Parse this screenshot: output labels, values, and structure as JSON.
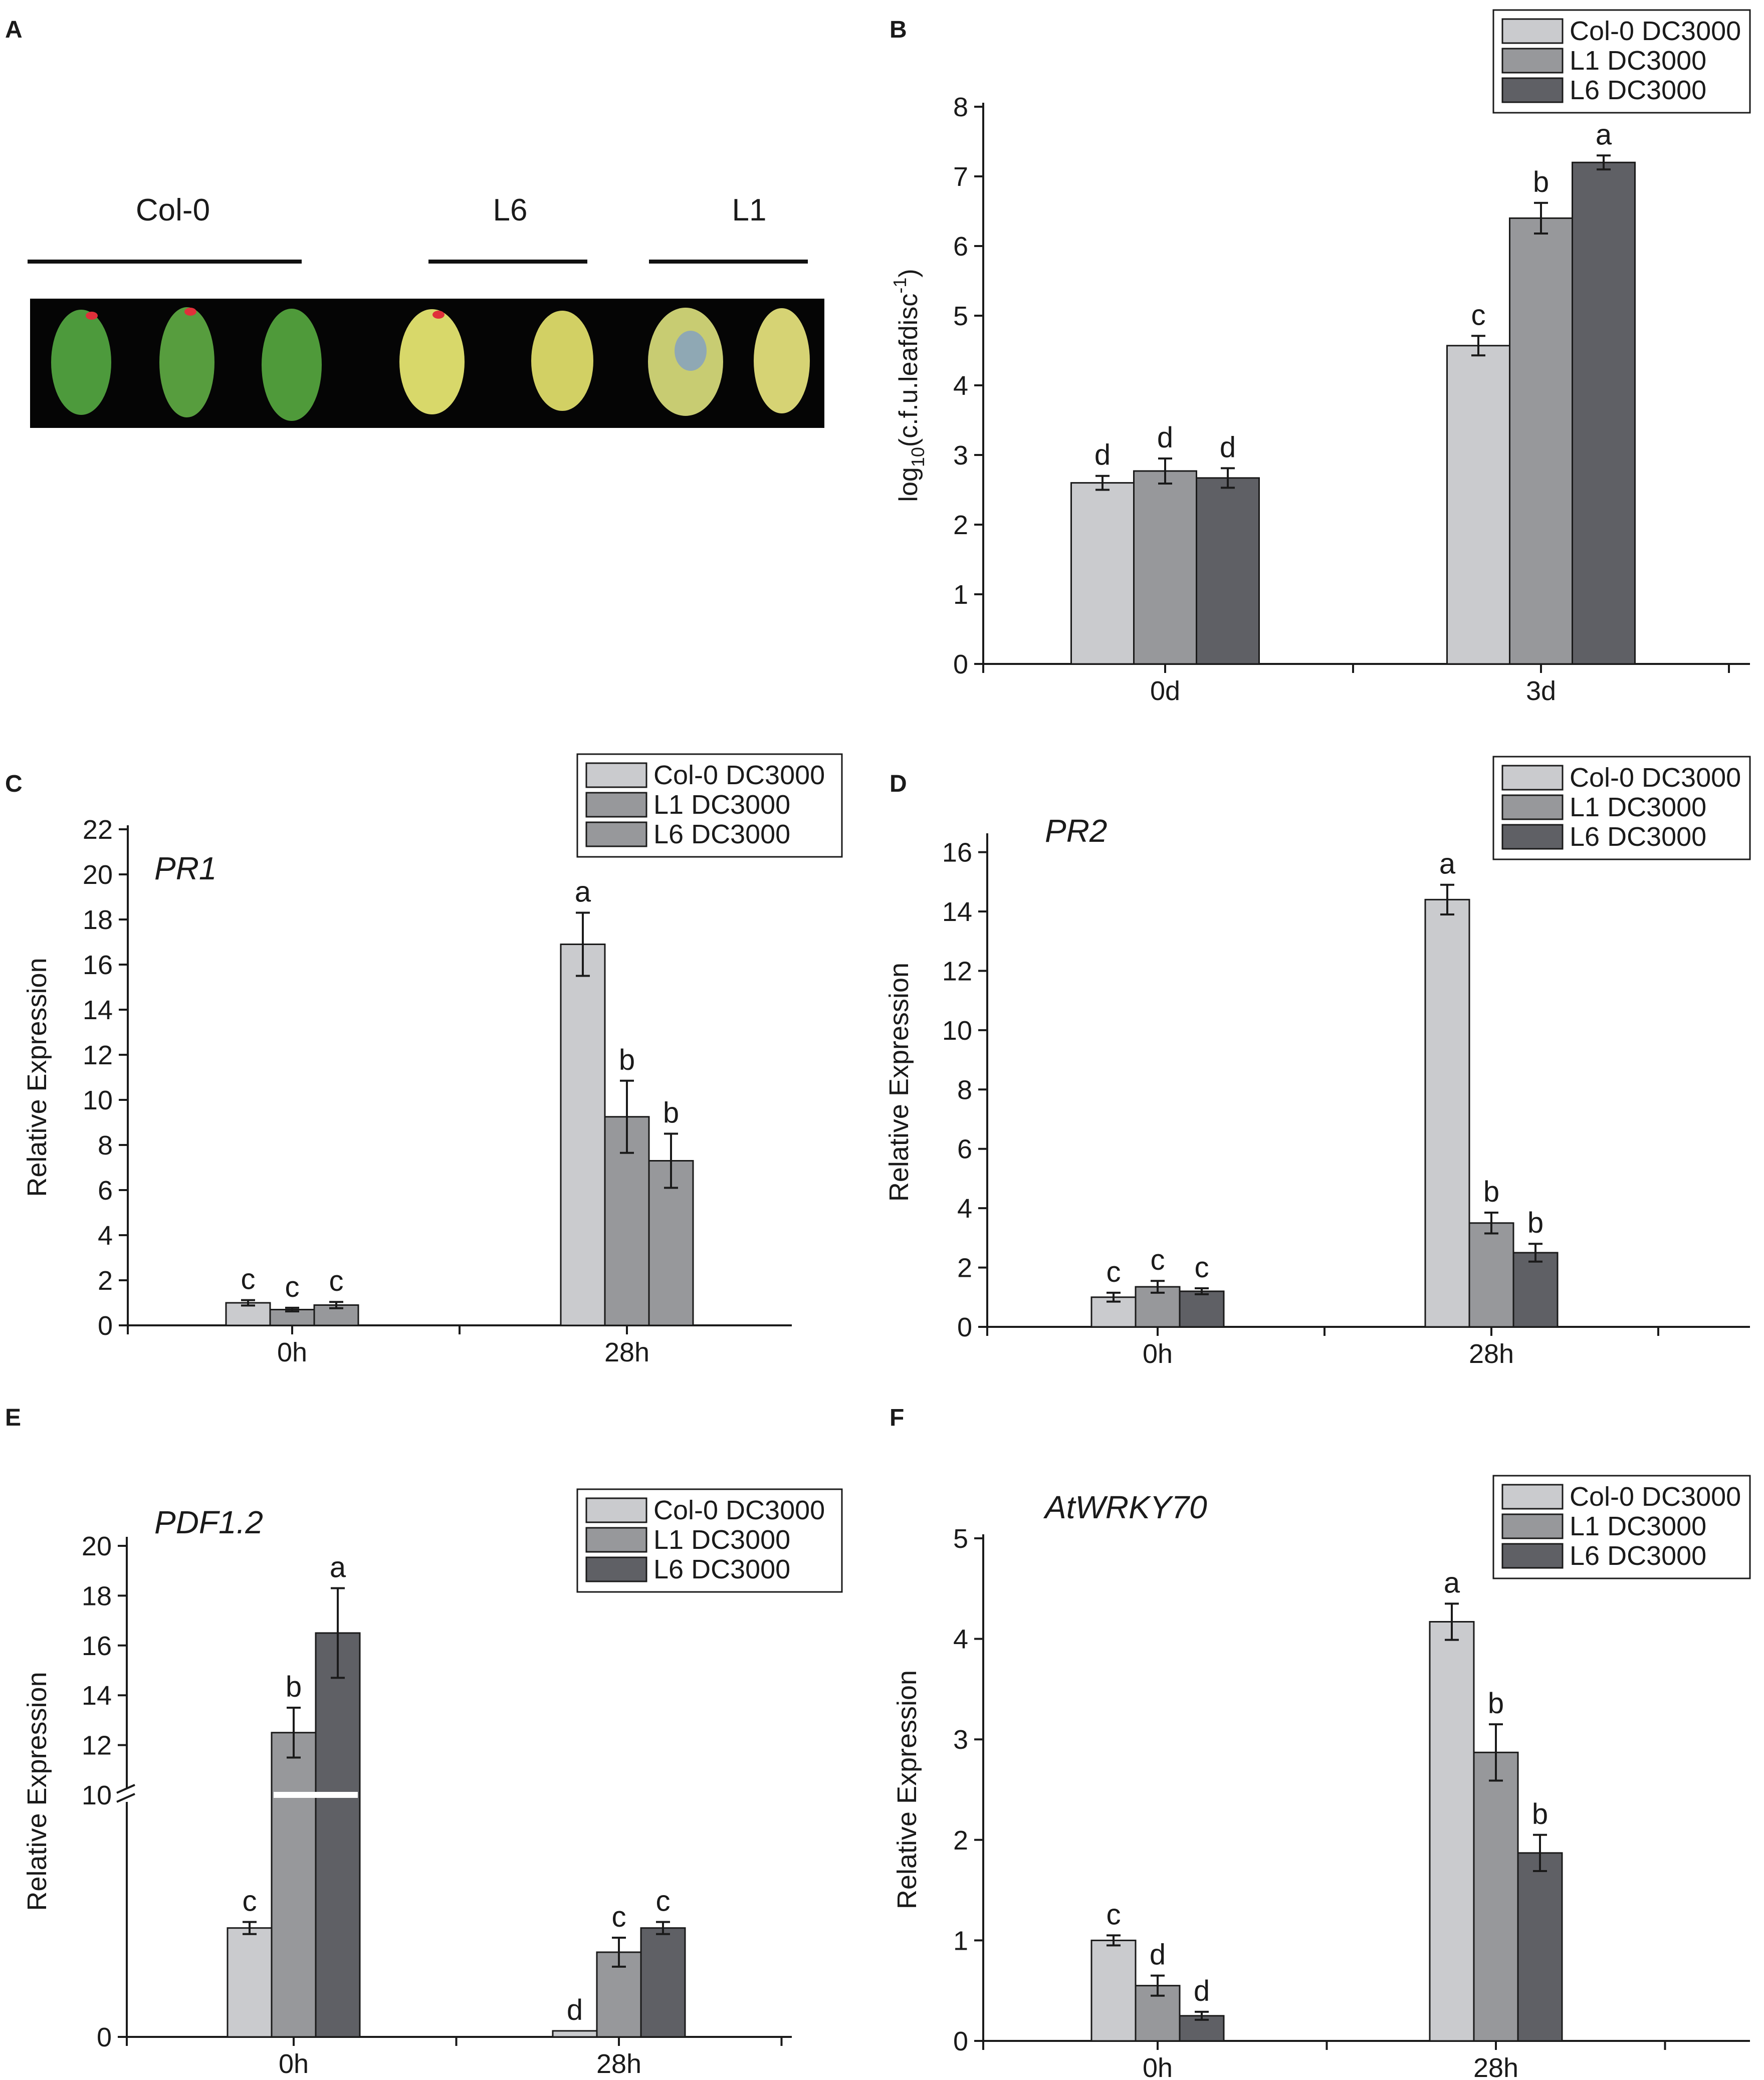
{
  "colors": {
    "col0": "#cacbce",
    "l1": "#97989b",
    "l6": "#5f6065",
    "l6_panel_c": "#97989b",
    "axis": "#1a1a1a"
  },
  "panel_a": {
    "letter": "A",
    "groups": [
      "Col-0",
      "L6",
      "L1"
    ]
  },
  "chart_data": [
    {
      "panel": "B",
      "type": "bar",
      "title": "",
      "ylabel": "log10(c.f.u.leafdisc-1)",
      "ylabel_parts": {
        "base": "log",
        "sub": "10",
        "main": "(c.f.u.leafdisc",
        "sup": "-1",
        "close": ")"
      },
      "categories": [
        "0d",
        "3d"
      ],
      "ylim": [
        0,
        8
      ],
      "yticks": [
        "0",
        "1",
        "2",
        "3",
        "4",
        "5",
        "6",
        "7",
        "8"
      ],
      "legend": [
        "Col-0 DC3000",
        "L1 DC3000",
        "L6 DC3000"
      ],
      "legend_position": "top-right",
      "series": [
        {
          "name": "Col-0 DC3000",
          "values": [
            2.6,
            4.57
          ],
          "errors": [
            0.1,
            0.14
          ],
          "letters": [
            "d",
            "c"
          ]
        },
        {
          "name": "L1 DC3000",
          "values": [
            2.77,
            6.4
          ],
          "errors": [
            0.18,
            0.22
          ],
          "letters": [
            "d",
            "b"
          ]
        },
        {
          "name": "L6 DC3000",
          "values": [
            2.67,
            7.2
          ],
          "errors": [
            0.14,
            0.1
          ],
          "letters": [
            "d",
            "a"
          ]
        }
      ]
    },
    {
      "panel": "C",
      "type": "bar",
      "title": "PR1",
      "ylabel": "Relative Expression",
      "categories": [
        "0h",
        "28h"
      ],
      "ylim": [
        0,
        22
      ],
      "yticks": [
        "0",
        "2",
        "4",
        "6",
        "8",
        "10",
        "12",
        "14",
        "16",
        "18",
        "20",
        "22"
      ],
      "legend": [
        "Col-0 DC3000",
        "L1 DC3000",
        "L6 DC3000"
      ],
      "legend_position": "top-right",
      "series": [
        {
          "name": "Col-0 DC3000",
          "values": [
            1.0,
            16.9
          ],
          "errors": [
            0.12,
            1.4
          ],
          "letters": [
            "c",
            "a"
          ]
        },
        {
          "name": "L1 DC3000",
          "values": [
            0.7,
            9.25
          ],
          "errors": [
            0.08,
            1.6
          ],
          "letters": [
            "c",
            "b"
          ]
        },
        {
          "name": "L6 DC3000",
          "values": [
            0.9,
            7.3
          ],
          "errors": [
            0.14,
            1.2
          ],
          "letters": [
            "c",
            "b"
          ]
        }
      ]
    },
    {
      "panel": "D",
      "type": "bar",
      "title": "PR2",
      "ylabel": "Relative Expression",
      "categories": [
        "0h",
        "28h"
      ],
      "ylim": [
        0,
        16.5
      ],
      "yticks": [
        "0",
        "2",
        "4",
        "6",
        "8",
        "10",
        "12",
        "14",
        "16"
      ],
      "legend": [
        "Col-0 DC3000",
        "L1 DC3000",
        "L6 DC3000"
      ],
      "legend_position": "top-right",
      "series": [
        {
          "name": "Col-0 DC3000",
          "values": [
            1.0,
            14.4
          ],
          "errors": [
            0.15,
            0.5
          ],
          "letters": [
            "c",
            "a"
          ]
        },
        {
          "name": "L1 DC3000",
          "values": [
            1.35,
            3.5
          ],
          "errors": [
            0.2,
            0.35
          ],
          "letters": [
            "c",
            "b"
          ]
        },
        {
          "name": "L6 DC3000",
          "values": [
            1.2,
            2.5
          ],
          "errors": [
            0.1,
            0.3
          ],
          "letters": [
            "c",
            "b"
          ]
        }
      ]
    },
    {
      "panel": "E",
      "type": "bar",
      "title": "PDF1.2",
      "ylabel": "Relative Expression",
      "categories": [
        "0h",
        "28h"
      ],
      "axis_break": [
        2.0,
        10.0
      ],
      "yticks": [
        "0",
        "10",
        "12",
        "14",
        "16",
        "18",
        "20"
      ],
      "legend": [
        "Col-0 DC3000",
        "L1 DC3000",
        "L6 DC3000"
      ],
      "legend_position": "top-right",
      "series": [
        {
          "name": "Col-0 DC3000",
          "values": [
            0.9,
            0.05
          ],
          "errors": [
            0.05,
            0.0
          ],
          "letters": [
            "c",
            "d"
          ]
        },
        {
          "name": "L1 DC3000",
          "values": [
            12.5,
            0.7
          ],
          "errors": [
            1.0,
            0.12
          ],
          "letters": [
            "b",
            "c"
          ]
        },
        {
          "name": "L6 DC3000",
          "values": [
            16.5,
            0.9
          ],
          "errors": [
            1.8,
            0.05
          ],
          "letters": [
            "a",
            "c"
          ]
        }
      ]
    },
    {
      "panel": "F",
      "type": "bar",
      "title": "AtWRKY70",
      "ylabel": "Relative Expression",
      "categories": [
        "0h",
        "28h"
      ],
      "ylim": [
        0,
        5
      ],
      "yticks": [
        "0",
        "1",
        "2",
        "3",
        "4",
        "5"
      ],
      "legend": [
        "Col-0 DC3000",
        "L1 DC3000",
        "L6 DC3000"
      ],
      "legend_position": "top-right",
      "series": [
        {
          "name": "Col-0 DC3000",
          "values": [
            1.0,
            4.17
          ],
          "errors": [
            0.05,
            0.18
          ],
          "letters": [
            "c",
            "a"
          ]
        },
        {
          "name": "L1 DC3000",
          "values": [
            0.55,
            2.87
          ],
          "errors": [
            0.1,
            0.28
          ],
          "letters": [
            "d",
            "b"
          ]
        },
        {
          "name": "L6 DC3000",
          "values": [
            0.25,
            1.87
          ],
          "errors": [
            0.04,
            0.18
          ],
          "letters": [
            "d",
            "b"
          ]
        }
      ]
    }
  ]
}
